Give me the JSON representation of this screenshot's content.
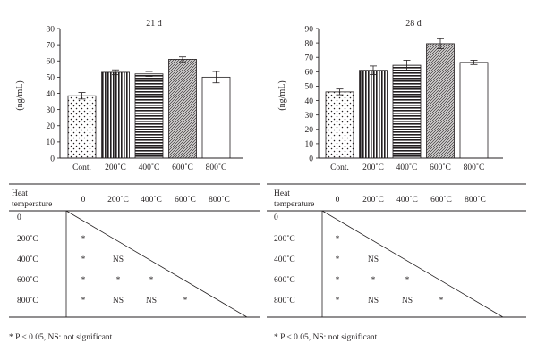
{
  "chart_data": [
    {
      "type": "bar",
      "title": "21 d",
      "ylabel": "(ng/mL)",
      "xlabel": "",
      "categories": [
        "Cont.",
        "200˚C",
        "400˚C",
        "600˚C",
        "800˚C"
      ],
      "values": [
        38.5,
        53,
        52,
        61,
        50
      ],
      "errors": [
        2,
        1.5,
        1.5,
        1.5,
        3.5
      ],
      "patterns": [
        "dots",
        "vertical",
        "horizontal",
        "crosshatch",
        "none"
      ],
      "ylim": [
        0,
        80
      ],
      "yticks": [
        0,
        10,
        20,
        30,
        40,
        50,
        60,
        70,
        80
      ],
      "grid": false
    },
    {
      "type": "bar",
      "title": "28 d",
      "ylabel": "(ng/mL)",
      "xlabel": "",
      "categories": [
        "Cont.",
        "200˚C",
        "400˚C",
        "600˚C",
        "800˚C"
      ],
      "values": [
        46,
        61,
        64.5,
        79.5,
        66.5
      ],
      "errors": [
        2,
        3,
        3.5,
        3.5,
        1.5
      ],
      "patterns": [
        "dots",
        "vertical",
        "horizontal",
        "crosshatch",
        "none"
      ],
      "ylim": [
        0,
        90
      ],
      "yticks": [
        0,
        10,
        20,
        30,
        40,
        50,
        60,
        70,
        80,
        90
      ],
      "grid": false
    }
  ],
  "tables": [
    {
      "header_label_1": "Heat",
      "header_label_2": "temperature",
      "columns": [
        "0",
        "200˚C",
        "400˚C",
        "600˚C",
        "800˚C"
      ],
      "row_labels": [
        "0",
        "200˚C",
        "400˚C",
        "600˚C",
        "800˚C"
      ],
      "cells": [
        [],
        [
          "*"
        ],
        [
          "*",
          "NS"
        ],
        [
          "*",
          "*",
          "*"
        ],
        [
          "*",
          "NS",
          "NS",
          "*"
        ]
      ],
      "footnote": "* P < 0.05, NS: not significant"
    },
    {
      "header_label_1": "Heat",
      "header_label_2": "temperature",
      "columns": [
        "0",
        "200˚C",
        "400˚C",
        "600˚C",
        "800˚C"
      ],
      "row_labels": [
        "0",
        "200˚C",
        "400˚C",
        "600˚C",
        "800˚C"
      ],
      "cells": [
        [],
        [
          "*"
        ],
        [
          "*",
          "NS"
        ],
        [
          "*",
          "*",
          "*"
        ],
        [
          "*",
          "NS",
          "NS",
          "*"
        ]
      ],
      "footnote": "* P < 0.05, NS: not significant"
    }
  ],
  "colors": {
    "ink": "#231f20",
    "bar_fill": "#ffffff",
    "background": "#ffffff"
  }
}
